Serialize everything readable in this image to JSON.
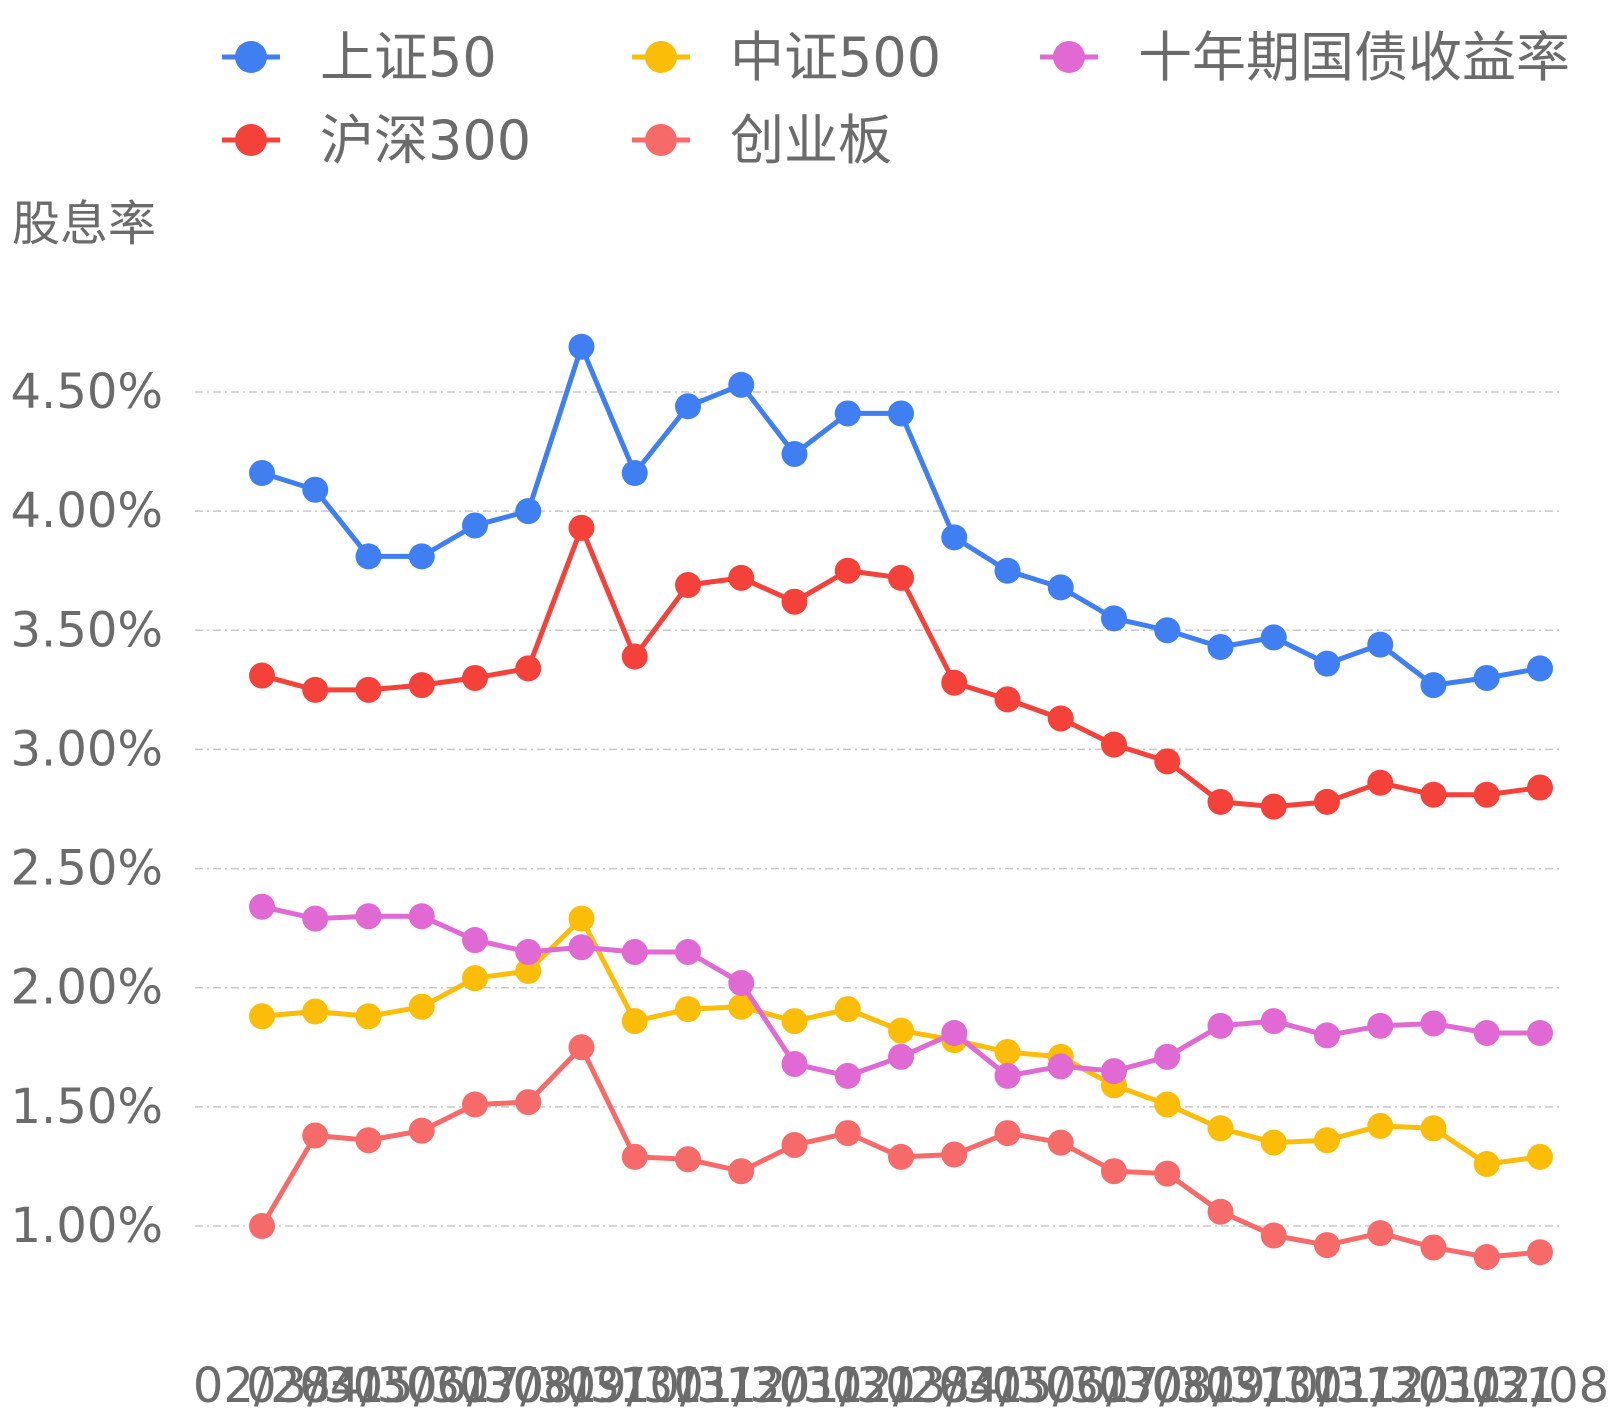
{
  "chart_data": {
    "type": "line",
    "title": "",
    "ylabel": "股息率",
    "xlabel": "",
    "ylim": [
      0.6,
      4.9
    ],
    "y_ticks": [
      "1.00%",
      "1.50%",
      "2.00%",
      "2.50%",
      "3.00%",
      "3.50%",
      "4.00%",
      "4.50%"
    ],
    "y_tick_values": [
      1.0,
      1.5,
      2.0,
      2.5,
      3.0,
      3.5,
      4.0,
      4.5
    ],
    "grid": true,
    "legend_position": "top",
    "categories": [
      "02/28",
      "03/31",
      "04/30",
      "05/31",
      "06/30",
      "07/31",
      "08/31",
      "09/30",
      "10/31",
      "11/30",
      "12/31",
      "01/31",
      "02/28",
      "03/31",
      "04/30",
      "05/31",
      "06/30",
      "07/31",
      "08/31",
      "09/30",
      "10/31",
      "11/30",
      "12/31",
      "01/31",
      "02/08"
    ],
    "series": [
      {
        "name": "上证50",
        "color": "#3f7ff2",
        "values": [
          4.16,
          4.09,
          3.81,
          3.81,
          3.94,
          4.0,
          4.69,
          4.16,
          4.44,
          4.53,
          4.24,
          4.41,
          4.41,
          3.89,
          3.75,
          3.68,
          3.55,
          3.5,
          3.43,
          3.47,
          3.36,
          3.44,
          3.27,
          3.3,
          3.34
        ]
      },
      {
        "name": "沪深300",
        "color": "#f4413a",
        "values": [
          3.31,
          3.25,
          3.25,
          3.27,
          3.3,
          3.34,
          3.93,
          3.39,
          3.69,
          3.72,
          3.62,
          3.75,
          3.72,
          3.28,
          3.21,
          3.13,
          3.02,
          2.95,
          2.78,
          2.76,
          2.78,
          2.86,
          2.81,
          2.81,
          2.84
        ]
      },
      {
        "name": "中证500",
        "color": "#fbbd08",
        "values": [
          1.88,
          1.9,
          1.88,
          1.92,
          2.04,
          2.07,
          2.29,
          1.86,
          1.91,
          1.92,
          1.86,
          1.91,
          1.82,
          1.78,
          1.73,
          1.71,
          1.59,
          1.51,
          1.41,
          1.35,
          1.36,
          1.42,
          1.41,
          1.26,
          1.29
        ]
      },
      {
        "name": "创业板",
        "color": "#f76a6a",
        "values": [
          1.0,
          1.38,
          1.36,
          1.4,
          1.51,
          1.52,
          1.75,
          1.29,
          1.28,
          1.23,
          1.34,
          1.39,
          1.29,
          1.3,
          1.39,
          1.35,
          1.23,
          1.22,
          1.06,
          0.96,
          0.92,
          0.97,
          0.91,
          0.87,
          0.89
        ]
      },
      {
        "name": "十年期国债收益率",
        "color": "#e069d3",
        "values": [
          2.34,
          2.29,
          2.3,
          2.3,
          2.2,
          2.15,
          2.17,
          2.15,
          2.15,
          2.02,
          1.68,
          1.63,
          1.71,
          1.81,
          1.63,
          1.67,
          1.65,
          1.71,
          1.84,
          1.86,
          1.8,
          1.84,
          1.85,
          1.81,
          1.81
        ]
      }
    ]
  }
}
